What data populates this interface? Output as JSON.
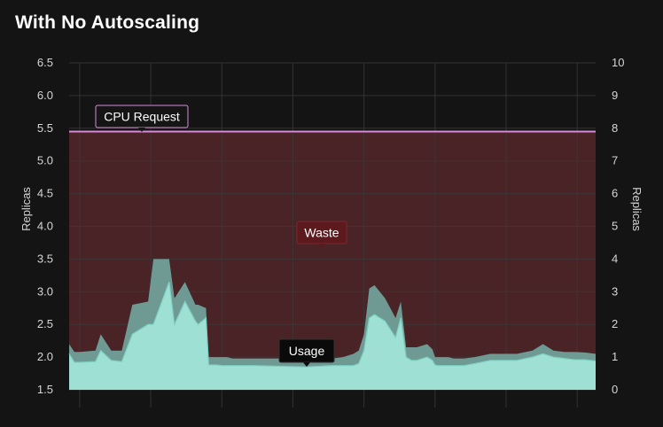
{
  "title": "With No Autoscaling",
  "chart_data": {
    "type": "area",
    "title": "With No Autoscaling",
    "ylabel_left": "Replicas",
    "ylabel_right": "Replicas",
    "ylim_left": [
      1.5,
      6.5
    ],
    "ylim_right": [
      0,
      10
    ],
    "yticks_left": [
      "6.5",
      "6.0",
      "5.5",
      "5.0",
      "4.5",
      "4.0",
      "3.5",
      "3.0",
      "2.5",
      "2.0",
      "1.5"
    ],
    "yticks_right": [
      "10",
      "9",
      "8",
      "7",
      "6",
      "5",
      "4",
      "3",
      "2",
      "1",
      "0"
    ],
    "grid": true,
    "cpu_request": 5.45,
    "annotations": {
      "cpu_request": "CPU Request",
      "waste": "Waste",
      "usage": "Usage"
    },
    "colors": {
      "usage_fill": "#9fe0d4",
      "usage_band": "#6f9a94",
      "waste_fill": "#4a2326",
      "request_line": "#d98ad8",
      "waste_label_bg": "#5c1a1e",
      "background": "#141414",
      "grid": "#3a3a3a"
    },
    "x": [
      0,
      0.01,
      0.02,
      0.05,
      0.06,
      0.08,
      0.1,
      0.12,
      0.15,
      0.16,
      0.19,
      0.2,
      0.22,
      0.24,
      0.245,
      0.26,
      0.265,
      0.28,
      0.29,
      0.3,
      0.31,
      0.35,
      0.4,
      0.45,
      0.5,
      0.52,
      0.54,
      0.55,
      0.56,
      0.57,
      0.58,
      0.6,
      0.62,
      0.63,
      0.64,
      0.65,
      0.66,
      0.68,
      0.69,
      0.695,
      0.7,
      0.72,
      0.73,
      0.75,
      0.77,
      0.8,
      0.85,
      0.88,
      0.9,
      0.92,
      0.94,
      0.96,
      0.98,
      1.0
    ],
    "usage": [
      2.05,
      1.92,
      1.92,
      1.93,
      2.1,
      1.95,
      1.93,
      2.35,
      2.5,
      2.5,
      3.15,
      2.5,
      2.85,
      2.55,
      2.5,
      2.6,
      1.88,
      1.88,
      1.87,
      1.87,
      1.87,
      1.87,
      1.86,
      1.85,
      1.87,
      1.87,
      1.87,
      1.9,
      2.1,
      2.6,
      2.65,
      2.55,
      2.3,
      2.6,
      2.0,
      1.95,
      1.95,
      2.0,
      1.95,
      1.88,
      1.87,
      1.87,
      1.87,
      1.87,
      1.9,
      1.95,
      1.95,
      2.0,
      2.05,
      2.0,
      1.98,
      1.96,
      1.96,
      1.94
    ],
    "usage_upper": [
      2.2,
      2.08,
      2.08,
      2.1,
      2.35,
      2.1,
      2.1,
      2.8,
      2.85,
      3.5,
      3.5,
      2.9,
      3.15,
      2.8,
      2.8,
      2.75,
      2.0,
      2.0,
      2.0,
      2.0,
      1.98,
      1.98,
      1.98,
      1.97,
      1.98,
      2.0,
      2.05,
      2.1,
      2.35,
      3.05,
      3.1,
      2.9,
      2.6,
      2.85,
      2.15,
      2.15,
      2.15,
      2.2,
      2.12,
      2.0,
      2.0,
      2.0,
      1.98,
      1.98,
      2.0,
      2.05,
      2.05,
      2.1,
      2.2,
      2.1,
      2.08,
      2.08,
      2.07,
      2.05
    ]
  }
}
